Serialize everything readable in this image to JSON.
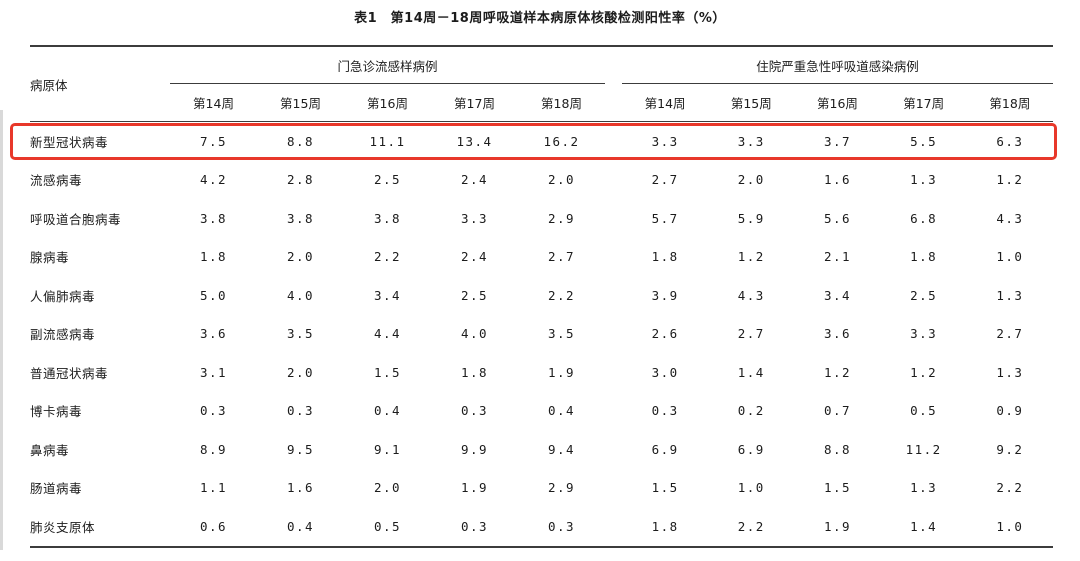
{
  "table": {
    "title": "表1　第14周－18周呼吸道样本病原体核酸检测阳性率（%）",
    "pathogen_header": "病原体",
    "highlight_color": "#e8382a",
    "highlighted_row": "新型冠状病毒",
    "groups": [
      {
        "label": "门急诊流感样病例",
        "weeks": [
          "第14周",
          "第15周",
          "第16周",
          "第17周",
          "第18周"
        ]
      },
      {
        "label": "住院严重急性呼吸道感染病例",
        "weeks": [
          "第14周",
          "第15周",
          "第16周",
          "第17周",
          "第18周"
        ]
      }
    ],
    "rows": [
      {
        "pathogen": "新型冠状病毒",
        "ili": [
          "7.5",
          "8.8",
          "11.1",
          "13.4",
          "16.2"
        ],
        "sari": [
          "3.3",
          "3.3",
          "3.7",
          "5.5",
          "6.3"
        ]
      },
      {
        "pathogen": "流感病毒",
        "ili": [
          "4.2",
          "2.8",
          "2.5",
          "2.4",
          "2.0"
        ],
        "sari": [
          "2.7",
          "2.0",
          "1.6",
          "1.3",
          "1.2"
        ]
      },
      {
        "pathogen": "呼吸道合胞病毒",
        "ili": [
          "3.8",
          "3.8",
          "3.8",
          "3.3",
          "2.9"
        ],
        "sari": [
          "5.7",
          "5.9",
          "5.6",
          "6.8",
          "4.3"
        ]
      },
      {
        "pathogen": "腺病毒",
        "ili": [
          "1.8",
          "2.0",
          "2.2",
          "2.4",
          "2.7"
        ],
        "sari": [
          "1.8",
          "1.2",
          "2.1",
          "1.8",
          "1.0"
        ]
      },
      {
        "pathogen": "人偏肺病毒",
        "ili": [
          "5.0",
          "4.0",
          "3.4",
          "2.5",
          "2.2"
        ],
        "sari": [
          "3.9",
          "4.3",
          "3.4",
          "2.5",
          "1.3"
        ]
      },
      {
        "pathogen": "副流感病毒",
        "ili": [
          "3.6",
          "3.5",
          "4.4",
          "4.0",
          "3.5"
        ],
        "sari": [
          "2.6",
          "2.7",
          "3.6",
          "3.3",
          "2.7"
        ]
      },
      {
        "pathogen": "普通冠状病毒",
        "ili": [
          "3.1",
          "2.0",
          "1.5",
          "1.8",
          "1.9"
        ],
        "sari": [
          "3.0",
          "1.4",
          "1.2",
          "1.2",
          "1.3"
        ]
      },
      {
        "pathogen": "博卡病毒",
        "ili": [
          "0.3",
          "0.3",
          "0.4",
          "0.3",
          "0.4"
        ],
        "sari": [
          "0.3",
          "0.2",
          "0.7",
          "0.5",
          "0.9"
        ]
      },
      {
        "pathogen": "鼻病毒",
        "ili": [
          "8.9",
          "9.5",
          "9.1",
          "9.9",
          "9.4"
        ],
        "sari": [
          "6.9",
          "6.9",
          "8.8",
          "11.2",
          "9.2"
        ]
      },
      {
        "pathogen": "肠道病毒",
        "ili": [
          "1.1",
          "1.6",
          "2.0",
          "1.9",
          "2.9"
        ],
        "sari": [
          "1.5",
          "1.0",
          "1.5",
          "1.3",
          "2.2"
        ]
      },
      {
        "pathogen": "肺炎支原体",
        "ili": [
          "0.6",
          "0.4",
          "0.5",
          "0.3",
          "0.3"
        ],
        "sari": [
          "1.8",
          "2.2",
          "1.9",
          "1.4",
          "1.0"
        ]
      }
    ]
  }
}
